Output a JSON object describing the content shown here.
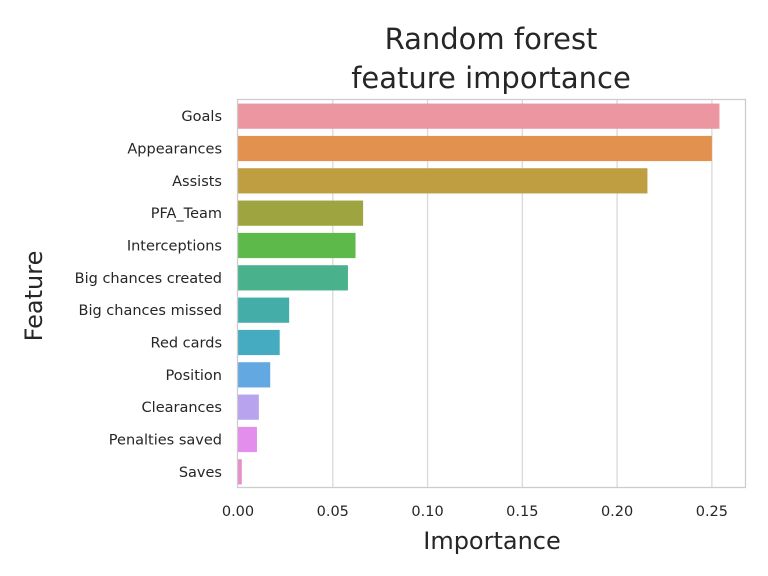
{
  "chart_data": {
    "type": "bar",
    "orientation": "horizontal",
    "title_lines": [
      "Random forest",
      "feature importance"
    ],
    "xlabel": "Importance",
    "ylabel": "Feature",
    "xlim": [
      0,
      0.268
    ],
    "xticks": [
      "0.00",
      "0.05",
      "0.10",
      "0.15",
      "0.20",
      "0.25"
    ],
    "xtick_values": [
      0,
      0.05,
      0.1,
      0.15,
      0.2,
      0.25
    ],
    "grid": "vertical",
    "categories": [
      "Goals",
      "Appearances",
      "Assists",
      "PFA_Team",
      "Interceptions",
      "Big chances created",
      "Big chances missed",
      "Red cards",
      "Position",
      "Clearances",
      "Penalties saved",
      "Saves"
    ],
    "values": [
      0.254,
      0.25,
      0.216,
      0.066,
      0.062,
      0.058,
      0.027,
      0.022,
      0.017,
      0.011,
      0.01,
      0.002
    ],
    "colors": [
      "#ec96a1",
      "#e2914e",
      "#bf9e42",
      "#9ea43f",
      "#5db94a",
      "#49b18b",
      "#45ada8",
      "#45abc0",
      "#64a8e2",
      "#b8a4ee",
      "#e38ded",
      "#e68fc8"
    ]
  }
}
